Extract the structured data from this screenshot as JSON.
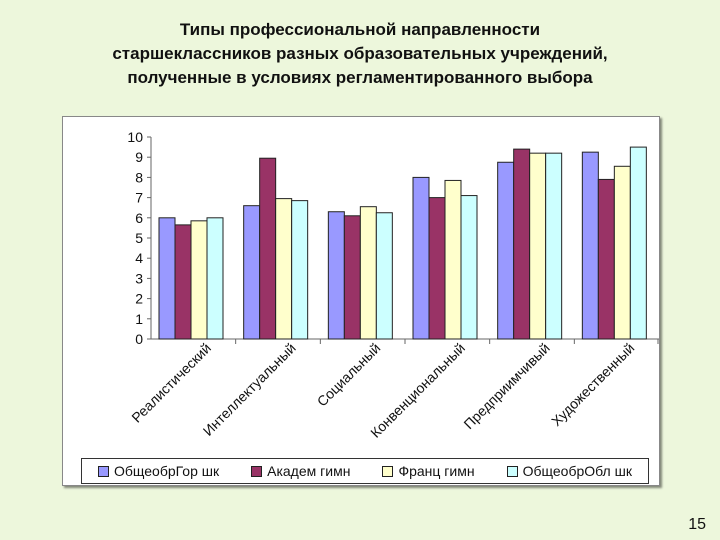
{
  "title_lines": [
    "Типы профессиональной направленности",
    "старшеклассников разных образовательных учреждений,",
    "полученные в условиях регламентированного выбора"
  ],
  "page_number": "15",
  "chart_data": {
    "type": "bar",
    "title": "",
    "xlabel": "",
    "ylabel": "",
    "ylim": [
      0,
      10
    ],
    "yticks": [
      "0",
      "1",
      "2",
      "3",
      "4",
      "5",
      "6",
      "7",
      "8",
      "9",
      "10"
    ],
    "grid": false,
    "legend_position": "bottom",
    "categories": [
      "Реалистический",
      "Интеллектуальный",
      "Социальный",
      "Конвенциональный",
      "Предприимчивый",
      "Художественный"
    ],
    "series": [
      {
        "name": "ОбщеобрГор шк",
        "color": "#9999ff",
        "values": [
          6.0,
          6.6,
          6.3,
          8.0,
          8.75,
          9.25
        ]
      },
      {
        "name": "Академ гимн",
        "color": "#993366",
        "values": [
          5.65,
          8.95,
          6.1,
          7.0,
          9.4,
          7.9
        ]
      },
      {
        "name": "Франц гимн",
        "color": "#ffffcc",
        "values": [
          5.85,
          6.95,
          6.55,
          7.85,
          9.2,
          8.55
        ]
      },
      {
        "name": "ОбщеобрОбл шк",
        "color": "#ccffff",
        "values": [
          6.0,
          6.85,
          6.25,
          7.1,
          9.2,
          9.5
        ]
      }
    ]
  }
}
